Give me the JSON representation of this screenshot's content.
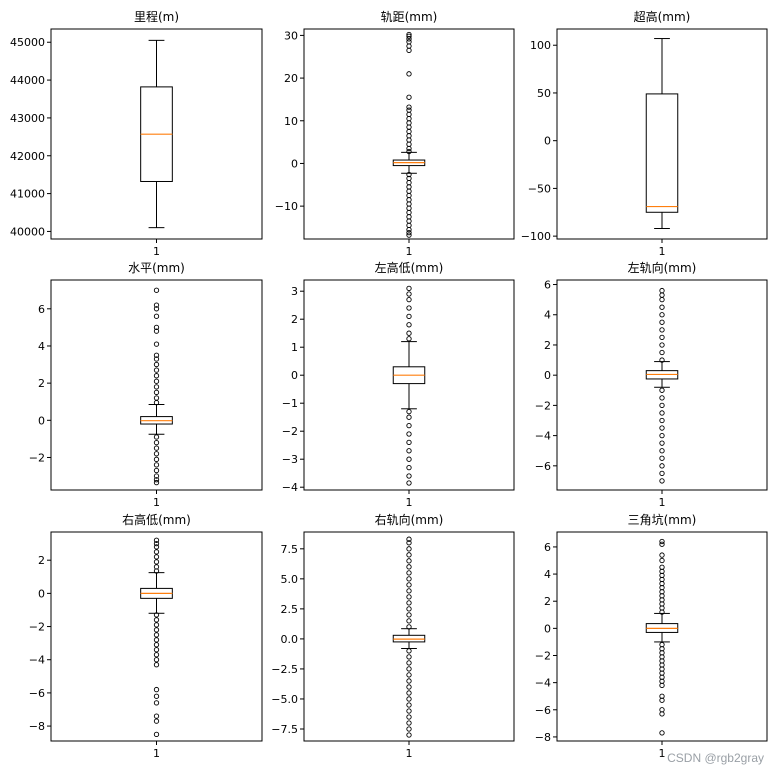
{
  "watermark": "CSDN @rgb2gray",
  "colors": {
    "median": "#ff7f0e",
    "line": "#000000",
    "background": "#ffffff"
  },
  "chart_data": [
    {
      "type": "boxplot",
      "title": "里程(m)",
      "x_tick": "1",
      "ylim": [
        39800,
        45350
      ],
      "yticks": [
        40000,
        41000,
        42000,
        43000,
        44000,
        45000
      ],
      "tick_labels": [
        "40000",
        "41000",
        "42000",
        "43000",
        "44000",
        "45000"
      ],
      "whisker_low": 40100,
      "q1": 41320,
      "median": 42570,
      "q3": 43820,
      "whisker_high": 45050,
      "fliers_low": [],
      "fliers_high": []
    },
    {
      "type": "boxplot",
      "title": "轨距(mm)",
      "x_tick": "1",
      "ylim": [
        -17.7,
        31.5
      ],
      "yticks": [
        -10,
        0,
        10,
        20,
        30
      ],
      "tick_labels": [
        "−10",
        "0",
        "10",
        "20",
        "30"
      ],
      "whisker_low": -2.3,
      "q1": -0.5,
      "median": 0.2,
      "q3": 0.8,
      "whisker_high": 2.6,
      "fliers_low": [
        -2.6,
        -3.5,
        -4.5,
        -5.5,
        -6.5,
        -7.5,
        -8.5,
        -9.5,
        -10.5,
        -11.5,
        -12.5,
        -13.5,
        -14.5,
        -15.5,
        -16.2,
        -16.8
      ],
      "fliers_high": [
        2.8,
        3.5,
        4.5,
        5.5,
        6.5,
        7.5,
        8.5,
        9.5,
        10.5,
        11.5,
        12.5,
        13.2,
        15.5,
        21,
        26.5,
        27.5,
        28.5,
        29.2,
        29.8,
        30.2
      ]
    },
    {
      "type": "boxplot",
      "title": "超高(mm)",
      "x_tick": "1",
      "ylim": [
        -103,
        117
      ],
      "yticks": [
        -100,
        -50,
        0,
        50,
        100
      ],
      "tick_labels": [
        "−100",
        "−50",
        "0",
        "50",
        "100"
      ],
      "whisker_low": -92,
      "q1": -75,
      "median": -69,
      "q3": 49,
      "whisker_high": 107,
      "fliers_low": [],
      "fliers_high": []
    },
    {
      "type": "boxplot",
      "title": "水平(mm)",
      "x_tick": "1",
      "ylim": [
        -3.75,
        7.55
      ],
      "yticks": [
        -2,
        0,
        2,
        4,
        6
      ],
      "tick_labels": [
        "−2",
        "0",
        "2",
        "4",
        "6"
      ],
      "whisker_low": -0.75,
      "q1": -0.2,
      "median": -0.02,
      "q3": 0.2,
      "whisker_high": 0.85,
      "fliers_low": [
        -0.9,
        -1.2,
        -1.5,
        -1.8,
        -2.1,
        -2.4,
        -2.7,
        -3.0,
        -3.2,
        -3.35
      ],
      "fliers_high": [
        0.95,
        1.2,
        1.5,
        1.8,
        2.1,
        2.4,
        2.7,
        3.0,
        3.3,
        3.5,
        4.1,
        4.8,
        5.0,
        5.6,
        6.0,
        6.2,
        7.0
      ]
    },
    {
      "type": "boxplot",
      "title": "左高低(mm)",
      "x_tick": "1",
      "ylim": [
        -4.1,
        3.4
      ],
      "yticks": [
        -4,
        -3,
        -2,
        -1,
        0,
        1,
        2,
        3
      ],
      "tick_labels": [
        "−4",
        "−3",
        "−2",
        "−1",
        "0",
        "1",
        "2",
        "3"
      ],
      "whisker_low": -1.2,
      "q1": -0.3,
      "median": 0.0,
      "q3": 0.3,
      "whisker_high": 1.2,
      "fliers_low": [
        -1.3,
        -1.5,
        -1.8,
        -2.1,
        -2.4,
        -2.7,
        -3.0,
        -3.3,
        -3.6,
        -3.85
      ],
      "fliers_high": [
        1.3,
        1.5,
        1.8,
        2.1,
        2.4,
        2.7,
        2.9,
        3.1
      ]
    },
    {
      "type": "boxplot",
      "title": "左轨向(mm)",
      "x_tick": "1",
      "ylim": [
        -7.6,
        6.3
      ],
      "yticks": [
        -6,
        -4,
        -2,
        0,
        2,
        4,
        6
      ],
      "tick_labels": [
        "−6",
        "−4",
        "−2",
        "0",
        "2",
        "4",
        "6"
      ],
      "whisker_low": -0.8,
      "q1": -0.25,
      "median": 0.05,
      "q3": 0.3,
      "whisker_high": 0.9,
      "fliers_low": [
        -1.0,
        -1.5,
        -2.0,
        -2.5,
        -3.0,
        -3.5,
        -4.0,
        -4.5,
        -5.0,
        -5.5,
        -6.0,
        -6.5,
        -7.0
      ],
      "fliers_high": [
        1.0,
        1.5,
        2.0,
        2.5,
        3.0,
        3.5,
        4.0,
        4.5,
        5.0,
        5.3,
        5.6
      ]
    },
    {
      "type": "boxplot",
      "title": "右高低(mm)",
      "x_tick": "1",
      "ylim": [
        -8.9,
        3.7
      ],
      "yticks": [
        -8,
        -6,
        -4,
        -2,
        0,
        2
      ],
      "tick_labels": [
        "−8",
        "−6",
        "−4",
        "−2",
        "0",
        "2"
      ],
      "whisker_low": -1.2,
      "q1": -0.3,
      "median": 0.0,
      "q3": 0.3,
      "whisker_high": 1.25,
      "fliers_low": [
        -1.3,
        -1.6,
        -1.9,
        -2.2,
        -2.5,
        -2.8,
        -3.1,
        -3.4,
        -3.7,
        -4.0,
        -4.3,
        -5.8,
        -6.2,
        -6.6,
        -7.4,
        -7.7,
        -8.5
      ],
      "fliers_high": [
        1.35,
        1.6,
        1.9,
        2.2,
        2.5,
        2.8,
        3.0,
        3.2
      ]
    },
    {
      "type": "boxplot",
      "title": "右轨向(mm)",
      "x_tick": "1",
      "ylim": [
        -8.5,
        8.9
      ],
      "yticks": [
        -7.5,
        -5.0,
        -2.5,
        0.0,
        2.5,
        5.0,
        7.5
      ],
      "tick_labels": [
        "−7.5",
        "−5.0",
        "−2.5",
        "0.0",
        "2.5",
        "5.0",
        "7.5"
      ],
      "whisker_low": -0.8,
      "q1": -0.25,
      "median": -0.02,
      "q3": 0.3,
      "whisker_high": 0.85,
      "fliers_low": [
        -1.0,
        -1.5,
        -2.0,
        -2.5,
        -3.0,
        -3.5,
        -4.0,
        -4.5,
        -5.0,
        -5.5,
        -6.0,
        -6.5,
        -7.0,
        -7.5,
        -8.0
      ],
      "fliers_high": [
        1.0,
        1.5,
        2.0,
        2.5,
        3.0,
        3.5,
        4.0,
        4.5,
        5.0,
        5.5,
        6.0,
        6.5,
        7.0,
        7.5,
        8.0,
        8.3
      ]
    },
    {
      "type": "boxplot",
      "title": "三角坑(mm)",
      "x_tick": "1",
      "ylim": [
        -8.3,
        7.1
      ],
      "yticks": [
        -8,
        -6,
        -4,
        -2,
        0,
        2,
        4,
        6
      ],
      "tick_labels": [
        "−8",
        "−6",
        "−4",
        "−2",
        "0",
        "2",
        "4",
        "6"
      ],
      "whisker_low": -1.0,
      "q1": -0.3,
      "median": 0.0,
      "q3": 0.35,
      "whisker_high": 1.1,
      "fliers_low": [
        -1.2,
        -1.5,
        -1.8,
        -2.1,
        -2.4,
        -2.7,
        -3.0,
        -3.3,
        -3.6,
        -3.9,
        -4.2,
        -5.0,
        -5.3,
        -6.0,
        -6.3,
        -7.7
      ],
      "fliers_high": [
        1.2,
        1.5,
        1.8,
        2.1,
        2.4,
        2.7,
        3.0,
        3.3,
        3.6,
        3.9,
        4.2,
        4.5,
        5.0,
        5.4,
        6.2,
        6.4
      ]
    }
  ]
}
